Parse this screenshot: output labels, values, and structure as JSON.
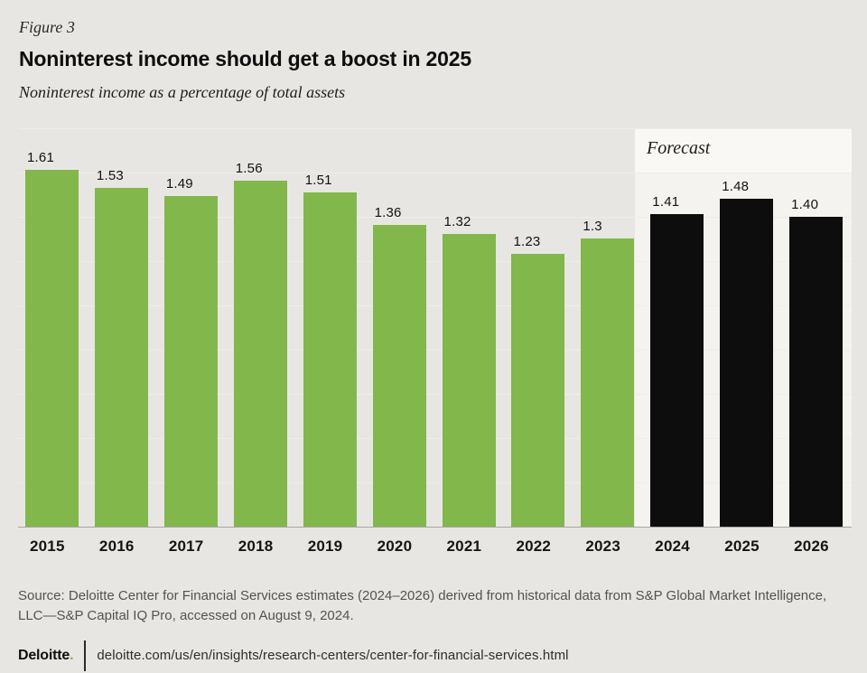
{
  "figure_label": "Figure 3",
  "title": "Noninterest income should get a boost in 2025",
  "subtitle": "Noninterest income as a percentage of total assets",
  "chart_data": {
    "type": "bar",
    "title": "Noninterest income should get a boost in 2025",
    "xlabel": "",
    "ylabel": "Noninterest income as a percentage of total assets",
    "categories": [
      "2015",
      "2016",
      "2017",
      "2018",
      "2019",
      "2020",
      "2021",
      "2022",
      "2023",
      "2024",
      "2025",
      "2026"
    ],
    "values": [
      1.61,
      1.53,
      1.49,
      1.56,
      1.51,
      1.36,
      1.32,
      1.23,
      1.3,
      1.41,
      1.48,
      1.4
    ],
    "value_labels": [
      "1.61",
      "1.53",
      "1.49",
      "1.56",
      "1.51",
      "1.36",
      "1.32",
      "1.23",
      "1.3",
      "1.41",
      "1.48",
      "1.40"
    ],
    "ylim": [
      0,
      1.8
    ],
    "gridline_interval": 0.2,
    "grid": true,
    "legend_position": "none",
    "forecast_label": "Forecast",
    "forecast_start_index": 9,
    "bar_color_historical": "#82b74c",
    "bar_color_forecast": "#0d0d0d",
    "forecast_band_color": "#f4f3f0"
  },
  "source_note": "Source: Deloitte Center for Financial Services estimates (2024–2026) derived from historical data from S&P Global Market Intelligence, LLC—S&P Capital IQ Pro, accessed on August 9, 2024.",
  "footer": {
    "brand_name": "Deloitte",
    "brand_dot": ".",
    "brand_dot_color": "#86bc25",
    "url": "deloitte.com/us/en/insights/research-centers/center-for-financial-services.html"
  }
}
